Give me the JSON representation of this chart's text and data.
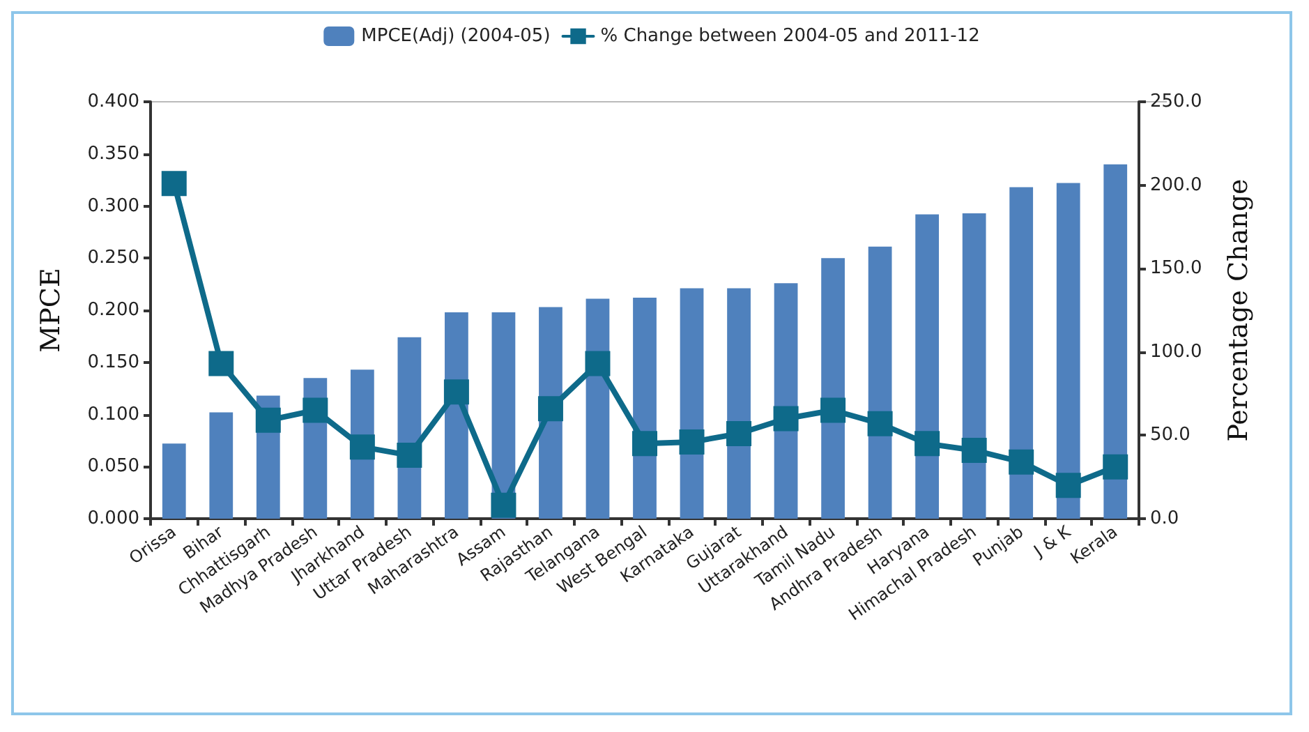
{
  "chart_data": {
    "type": "bar",
    "ylabel": "MPCE",
    "y2label": "Percentage Change",
    "categories": [
      "Orissa",
      "Bihar",
      "Chhattisgarh",
      "Madhya Pradesh",
      "Jharkhand",
      "Uttar Pradesh",
      "Maharashtra",
      "Assam",
      "Rajasthan",
      "Telangana",
      "West Bengal",
      "Karnataka",
      "Gujarat",
      "Uttarakhand",
      "Tamil Nadu",
      "Andhra Pradesh",
      "Haryana",
      "Himachal Pradesh",
      "Punjab",
      "J & K",
      "Kerala"
    ],
    "series": [
      {
        "name": "MPCE(Adj) (2004-05)",
        "color": "#4f81bd",
        "values": [
          0.072,
          0.102,
          0.118,
          0.135,
          0.143,
          0.174,
          0.198,
          0.198,
          0.203,
          0.211,
          0.212,
          0.221,
          0.221,
          0.226,
          0.25,
          0.261,
          0.292,
          0.293,
          0.318,
          0.322,
          0.34
        ]
      },
      {
        "name": "% Change between 2004-05 and 2011-12",
        "type": "line",
        "axis": "y2",
        "color": "#0e6a8a",
        "marker": "square",
        "values": [
          201,
          93,
          59,
          65,
          43,
          38,
          76,
          8,
          66,
          93,
          45,
          46,
          51,
          60,
          65,
          57,
          45,
          41,
          34,
          20,
          31
        ]
      }
    ],
    "ylim": [
      0,
      0.4
    ],
    "yticks": [
      {
        "value": 0,
        "label": "0.000"
      },
      {
        "value": 0.05,
        "label": "0.050"
      },
      {
        "value": 0.1,
        "label": "0.100"
      },
      {
        "value": 0.15,
        "label": "0.150"
      },
      {
        "value": 0.2,
        "label": "0.200"
      },
      {
        "value": 0.25,
        "label": "0.250"
      },
      {
        "value": 0.3,
        "label": "0.300"
      },
      {
        "value": 0.35,
        "label": "0.350"
      },
      {
        "value": 0.4,
        "label": "0.400"
      }
    ],
    "y2lim": [
      0,
      250
    ],
    "y2ticks": [
      {
        "value": 0,
        "label": "0.0"
      },
      {
        "value": 50,
        "label": "50.0"
      },
      {
        "value": 100,
        "label": "100.0"
      },
      {
        "value": 150,
        "label": "150.0"
      },
      {
        "value": 200,
        "label": "200.0"
      },
      {
        "value": 250,
        "label": "250.0"
      }
    ],
    "legend": "top",
    "grid": false
  }
}
